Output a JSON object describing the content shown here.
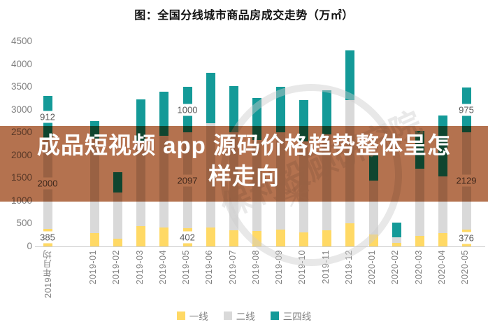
{
  "title": "图：全国分线城市商品房成交走势（万㎡）",
  "overlay": {
    "text": "成品短视频 app 源码价格趋势整体呈怎样走向",
    "line1": "成品短视频 app 源码价格趋势整体呈怎",
    "line2": "样走向",
    "color": "#b4724f"
  },
  "watermark": {
    "text": "保利投顾研究院",
    "star": "✳"
  },
  "chart_data": {
    "type": "bar",
    "stacked": true,
    "title": "图：全国分线城市商品房成交走势（万㎡）",
    "unit": "万㎡",
    "xlabel": "",
    "ylabel": "",
    "y_axis": {
      "min": 0,
      "max": 4500,
      "step": 500
    },
    "grid": false,
    "legend_position": "bottom",
    "categories": [
      "2019年月均",
      "2019-01",
      "2019-02",
      "2019-03",
      "2019-04",
      "2019-05",
      "2019-06",
      "2019-07",
      "2019-08",
      "2019-09",
      "2019-10",
      "2019-11",
      "2019-12",
      "2020-01",
      "2020-02",
      "2020-03",
      "2020-04",
      "2020-05"
    ],
    "series": [
      {
        "name": "一线",
        "color": "#ffd965",
        "values": [
          385,
          295,
          170,
          445,
          415,
          402,
          415,
          355,
          340,
          370,
          310,
          355,
          500,
          260,
          80,
          230,
          292,
          376
        ]
      },
      {
        "name": "二线",
        "color": "#d9d9d9",
        "values": [
          2000,
          2075,
          1015,
          1860,
          2010,
          2097,
          2295,
          2155,
          2000,
          2130,
          2000,
          2100,
          2710,
          1180,
          120,
          1470,
          1245,
          2129
        ]
      },
      {
        "name": "三四线",
        "color": "#149a98",
        "values": [
          912,
          380,
          445,
          920,
          970,
          1000,
          1100,
          1000,
          910,
          1000,
          900,
          975,
          1090,
          560,
          320,
          830,
          1335,
          975
        ]
      }
    ],
    "labeled_categories": [
      "2019年月均",
      "2019-05",
      "2020-05"
    ],
    "data_labels": {
      "2019年月均": {
        "一线": "385",
        "二线": "2000",
        "三四线": "912"
      },
      "2019-05": {
        "一线": "402",
        "二线": "2097",
        "三四线": "1000"
      },
      "2020-05": {
        "一线": "376",
        "二线": "2129",
        "三四线": "975"
      }
    }
  }
}
